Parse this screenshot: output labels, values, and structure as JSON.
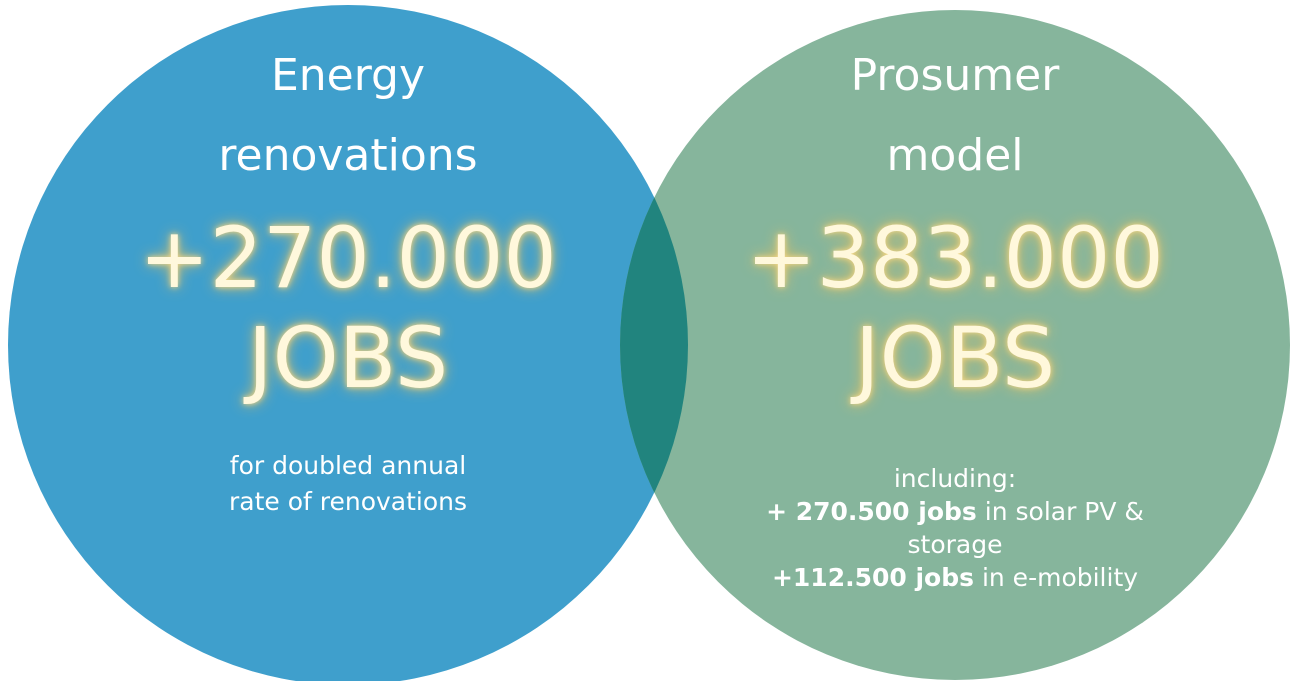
{
  "circles": [
    {
      "title": [
        "Energy",
        "renovations"
      ],
      "figure": "+270.000",
      "unit": "JOBS",
      "description": [
        [
          {
            "text": "for doubled annual"
          }
        ],
        [
          {
            "text": "rate of renovations"
          }
        ]
      ],
      "color": "#3f9fcc"
    },
    {
      "title": [
        "Prosumer",
        "model"
      ],
      "figure": "+383.000",
      "unit": "JOBS",
      "description": [
        [
          {
            "text": "including:"
          }
        ],
        [
          {
            "text": "+ 270.500 jobs",
            "bold": true
          },
          {
            "text": " in solar PV &"
          }
        ],
        [
          {
            "text": "storage"
          }
        ],
        [
          {
            "text": "+112.500 jobs",
            "bold": true
          },
          {
            "text": " in e-mobility"
          }
        ]
      ],
      "color": "#86b59c"
    }
  ],
  "overlap_color": "#21847e"
}
